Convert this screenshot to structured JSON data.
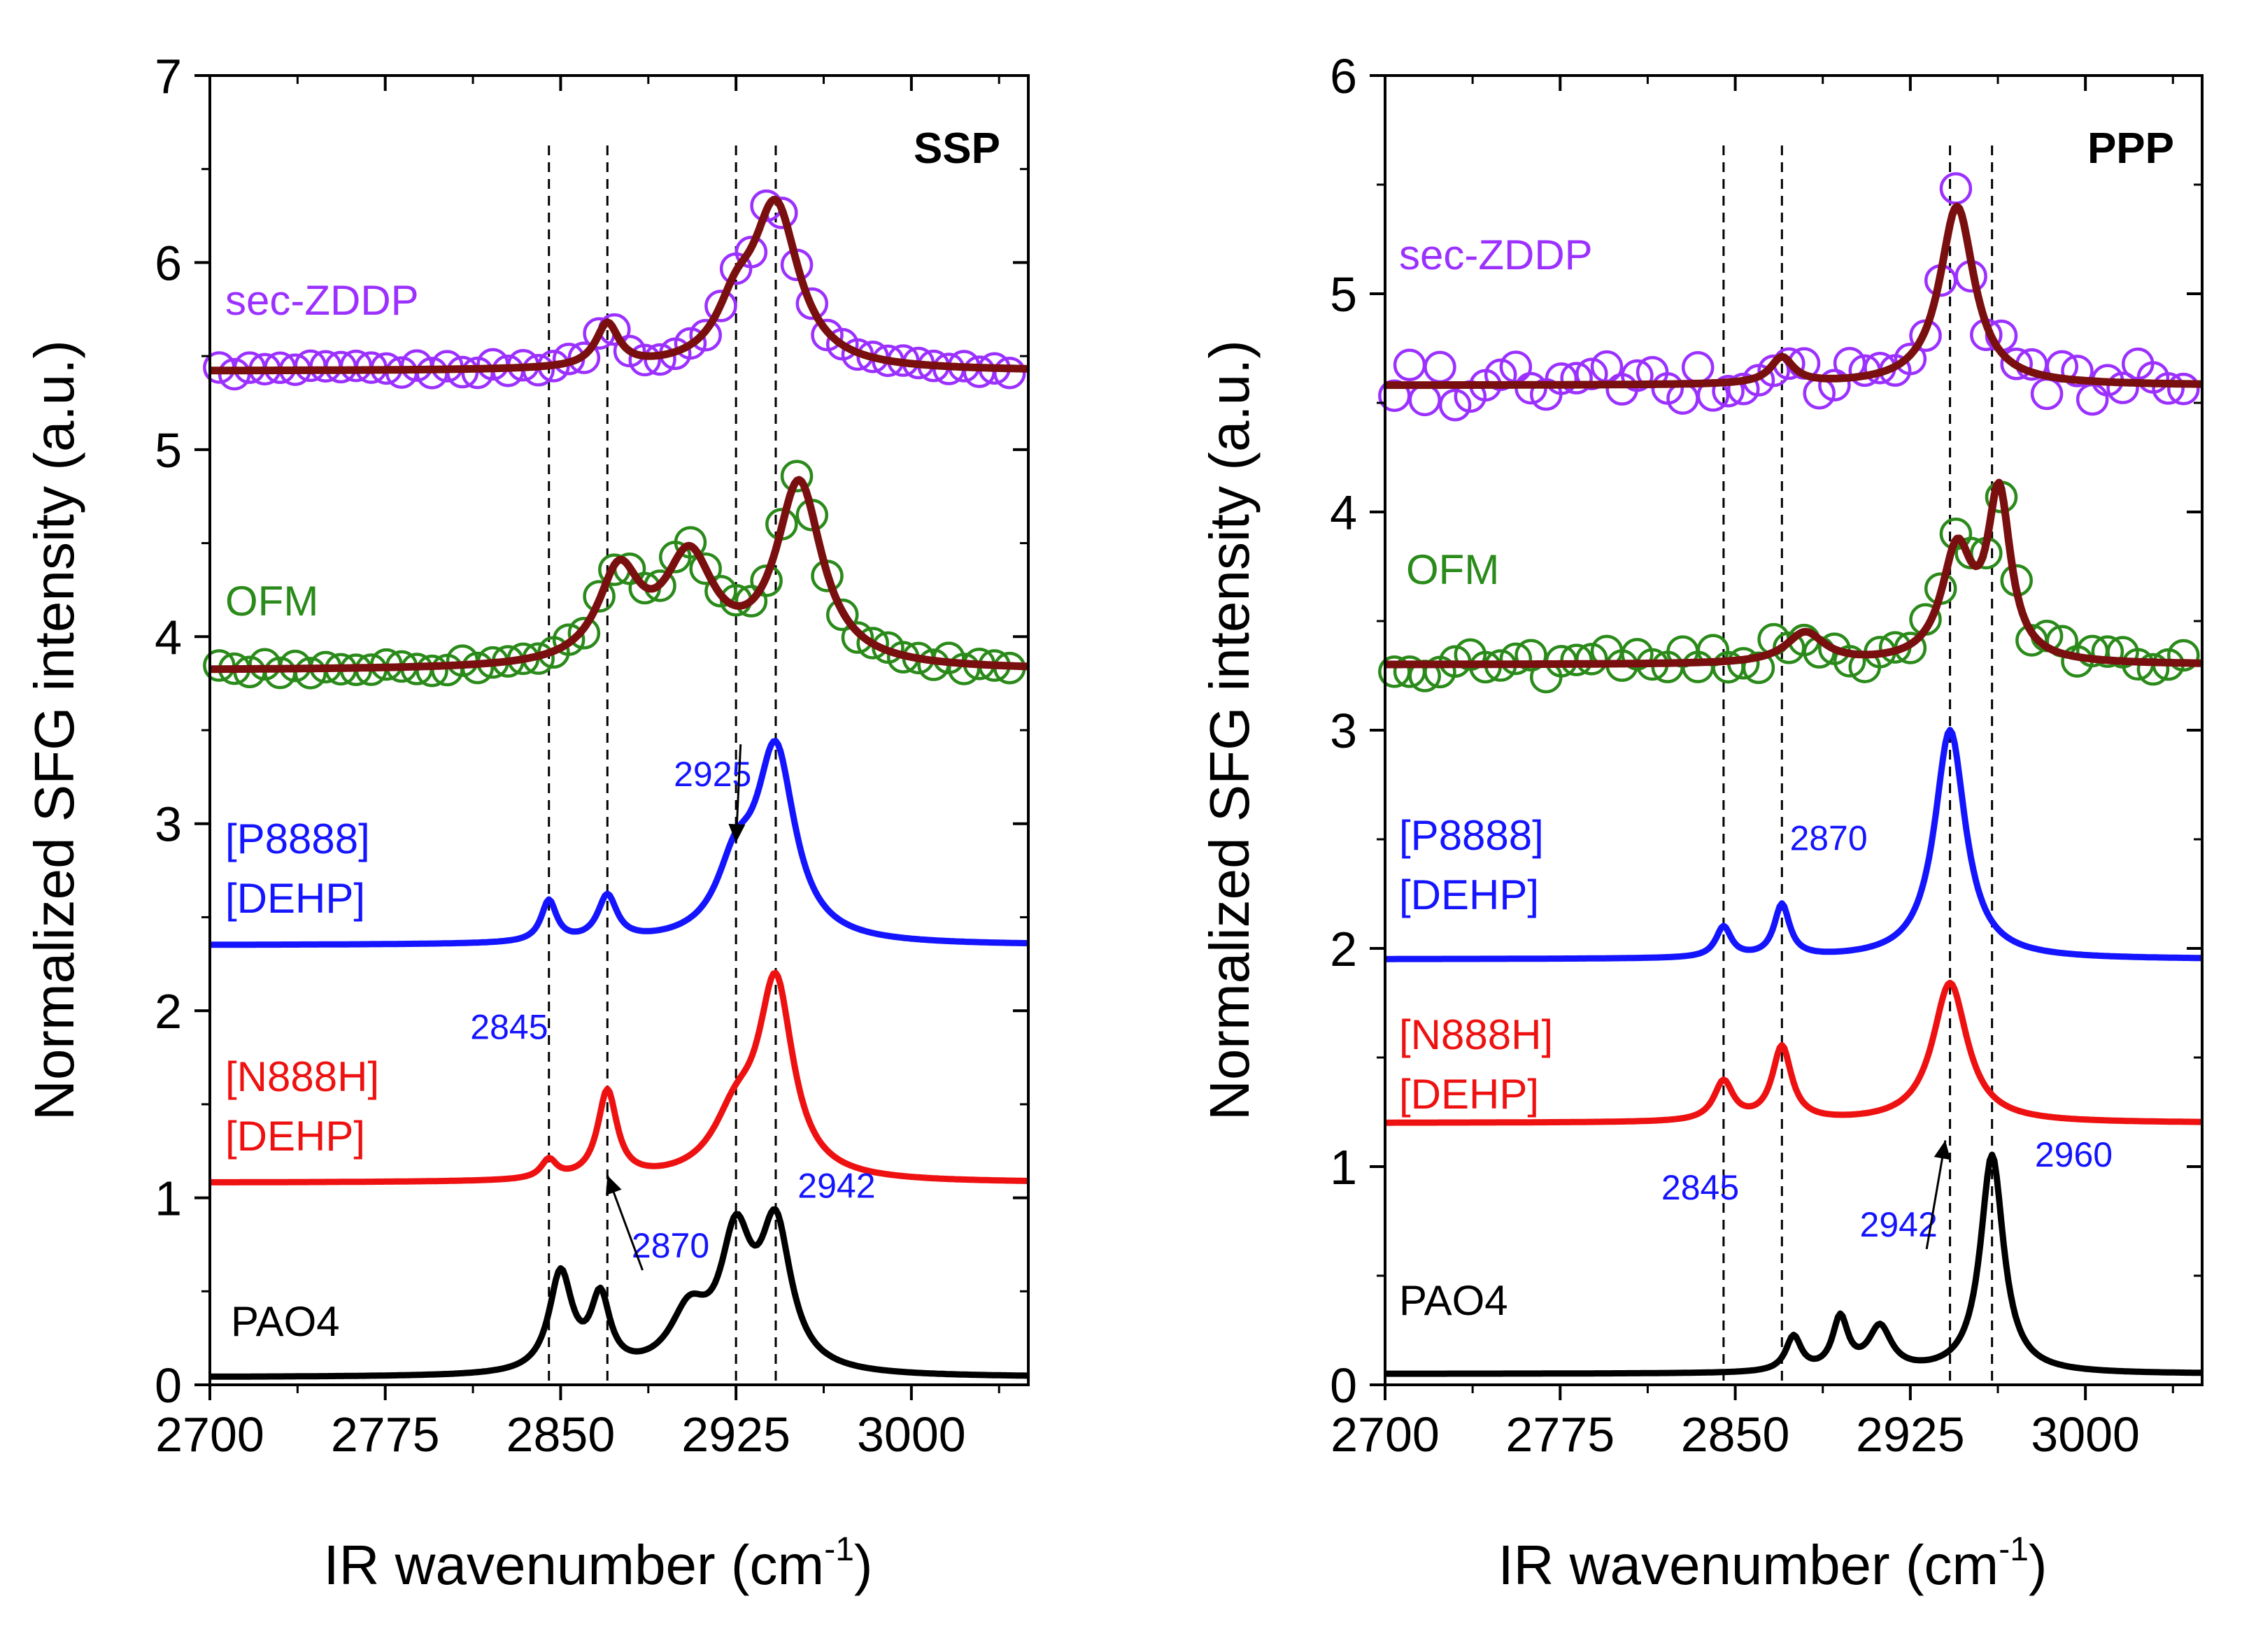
{
  "chart_data": [
    {
      "type": "line",
      "panel": "SSP",
      "title": "SSP",
      "xlabel": "IR wavenumber (cm",
      "xlabel_sup": "-1",
      "xlabel_close": ")",
      "ylabel": "Normalized SFG intensity (a.u.)",
      "xlim": [
        2700,
        3050
      ],
      "ylim": [
        0,
        7
      ],
      "xticks": [
        2700,
        2775,
        2850,
        2925,
        3000
      ],
      "yticks": [
        0,
        1,
        2,
        3,
        4,
        5,
        6,
        7
      ],
      "guide_lines": [
        2845,
        2870,
        2925,
        2942
      ],
      "series": [
        {
          "name": "sec-ZDDP",
          "label_lines": [
            "sec-ZDDP"
          ],
          "color": "#9b30ff",
          "fit_color": "#7a0f0f",
          "baseline": 5.42,
          "peaks": [
            [
              2870,
              0.23,
              6
            ],
            [
              2925,
              0.25,
              10
            ],
            [
              2942,
              0.85,
              12
            ]
          ],
          "noise": 0.025,
          "markers": true
        },
        {
          "name": "OFM",
          "label_lines": [
            "OFM"
          ],
          "color": "#2a8a1a",
          "fit_color": "#7a0f0f",
          "baseline": 3.82,
          "peaks": [
            [
              2875,
              0.48,
              11
            ],
            [
              2905,
              0.55,
              13
            ],
            [
              2952,
              0.97,
              12
            ]
          ],
          "noise": 0.03,
          "markers": true
        },
        {
          "name": "[P8888][DEHP]",
          "label_lines": [
            "[P8888]",
            "[DEHP]"
          ],
          "color": "#1414ff",
          "baseline": 2.35,
          "peaks": [
            [
              2845,
              0.22,
              4
            ],
            [
              2870,
              0.24,
              5
            ],
            [
              2925,
              0.35,
              10
            ],
            [
              2942,
              1.0,
              10
            ]
          ],
          "noise": 0,
          "markers": false
        },
        {
          "name": "[N888H][DEHP]",
          "label_lines": [
            "[N888H]",
            "[DEHP]"
          ],
          "color": "#ee1111",
          "baseline": 1.08,
          "peaks": [
            [
              2845,
              0.1,
              4
            ],
            [
              2870,
              0.47,
              5
            ],
            [
              2925,
              0.3,
              12
            ],
            [
              2942,
              1.02,
              9
            ]
          ],
          "noise": 0,
          "markers": false
        },
        {
          "name": "PAO4",
          "label_lines": [
            "PAO4"
          ],
          "color": "#000000",
          "baseline": 0.04,
          "peaks": [
            [
              2850,
              0.53,
              6
            ],
            [
              2867,
              0.38,
              5
            ],
            [
              2905,
              0.3,
              10
            ],
            [
              2925,
              0.67,
              8
            ],
            [
              2942,
              0.75,
              8
            ]
          ],
          "noise": 0,
          "markers": false
        }
      ],
      "annotations": [
        {
          "text": "2925",
          "x": 2915,
          "y": 3.2,
          "color": "#1414ff",
          "arrow_to": [
            2925,
            2.9
          ]
        },
        {
          "text": "2845",
          "x": 2828,
          "y": 1.85,
          "color": "#1414ff"
        },
        {
          "text": "2870",
          "x": 2897,
          "y": 0.68,
          "color": "#1414ff",
          "arrow_to": [
            2870,
            1.12
          ]
        },
        {
          "text": "2942",
          "x": 2968,
          "y": 1.0,
          "color": "#1414ff"
        }
      ]
    },
    {
      "type": "line",
      "panel": "PPP",
      "title": "PPP",
      "xlabel": "IR wavenumber (cm",
      "xlabel_sup": "-1",
      "xlabel_close": ")",
      "ylabel": "Normalized SFG intensity (a.u.)",
      "xlim": [
        2700,
        3050
      ],
      "ylim": [
        0,
        6
      ],
      "xticks": [
        2700,
        2775,
        2850,
        2925,
        3000
      ],
      "yticks": [
        0,
        1,
        2,
        3,
        4,
        5,
        6
      ],
      "guide_lines": [
        2845,
        2870,
        2942,
        2960
      ],
      "series": [
        {
          "name": "sec-ZDDP",
          "label_lines": [
            "sec-ZDDP"
          ],
          "color": "#9b30ff",
          "fit_color": "#7a0f0f",
          "baseline": 4.58,
          "peaks": [
            [
              2870,
              0.12,
              6
            ],
            [
              2945,
              0.82,
              9
            ]
          ],
          "noise": 0.1,
          "markers": true
        },
        {
          "name": "OFM",
          "label_lines": [
            "OFM"
          ],
          "color": "#2a8a1a",
          "fit_color": "#7a0f0f",
          "baseline": 3.3,
          "peaks": [
            [
              2880,
              0.14,
              10
            ],
            [
              2945,
              0.5,
              8
            ],
            [
              2963,
              0.75,
              6
            ]
          ],
          "noise": 0.06,
          "markers": true
        },
        {
          "name": "[P8888][DEHP]",
          "label_lines": [
            "[P8888]",
            "[DEHP]"
          ],
          "color": "#1414ff",
          "baseline": 1.95,
          "peaks": [
            [
              2845,
              0.14,
              4
            ],
            [
              2870,
              0.24,
              4
            ],
            [
              2942,
              1.05,
              8
            ]
          ],
          "noise": 0,
          "markers": false
        },
        {
          "name": "[N888H][DEHP]",
          "label_lines": [
            "[N888H]",
            "[DEHP]"
          ],
          "color": "#ee1111",
          "baseline": 1.2,
          "peaks": [
            [
              2845,
              0.18,
              5
            ],
            [
              2870,
              0.34,
              5
            ],
            [
              2942,
              0.64,
              9
            ]
          ],
          "noise": 0,
          "markers": false
        },
        {
          "name": "PAO4",
          "label_lines": [
            "PAO4"
          ],
          "color": "#000000",
          "baseline": 0.05,
          "peaks": [
            [
              2875,
              0.16,
              4
            ],
            [
              2895,
              0.24,
              4
            ],
            [
              2912,
              0.2,
              6
            ],
            [
              2960,
              1.0,
              6
            ]
          ],
          "noise": 0,
          "markers": false
        }
      ],
      "annotations": [
        {
          "text": "2870",
          "x": 2890,
          "y": 2.45,
          "color": "#1414ff"
        },
        {
          "text": "2845",
          "x": 2835,
          "y": 0.85,
          "color": "#1414ff"
        },
        {
          "text": "2942",
          "x": 2920,
          "y": 0.68,
          "color": "#1414ff",
          "arrow_to": [
            2940,
            1.12
          ]
        },
        {
          "text": "2960",
          "x": 2995,
          "y": 1.0,
          "color": "#1414ff"
        }
      ]
    }
  ]
}
